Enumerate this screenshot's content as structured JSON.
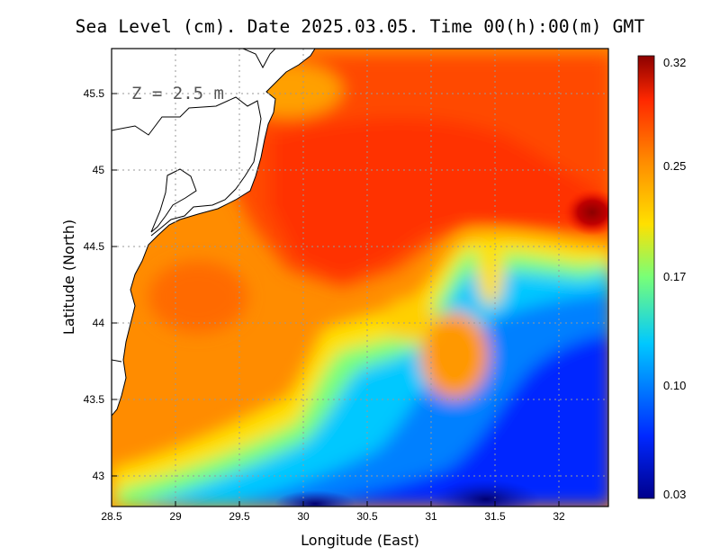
{
  "title": "Sea Level (cm). Date 2025.03.05. Time 00(h):00(m) GMT",
  "annotation": "Z = 2.5 m",
  "chart_data": {
    "type": "heatmap",
    "variable": "Sea Level (cm)",
    "xlabel": "Longitude (East)",
    "ylabel": "Latitude (North)",
    "xlim": [
      28.5,
      32.4
    ],
    "ylim": [
      42.8,
      45.8
    ],
    "xticks": [
      "28.5",
      "29",
      "29.5",
      "30",
      "30.5",
      "31",
      "31.5",
      "32"
    ],
    "yticks": [
      "43",
      "43.5",
      "44",
      "44.5",
      "45",
      "45.5"
    ],
    "grid": true,
    "colorbar": {
      "min": 0.03,
      "max": 0.32,
      "labels": [
        "0.32",
        "0.25",
        "0.17",
        "0.10",
        "0.03"
      ],
      "colors": [
        "#00008c",
        "#0028ff",
        "#00c8ff",
        "#78ff78",
        "#ffe000",
        "#ff8c00",
        "#ff2800",
        "#8c0000"
      ]
    }
  }
}
